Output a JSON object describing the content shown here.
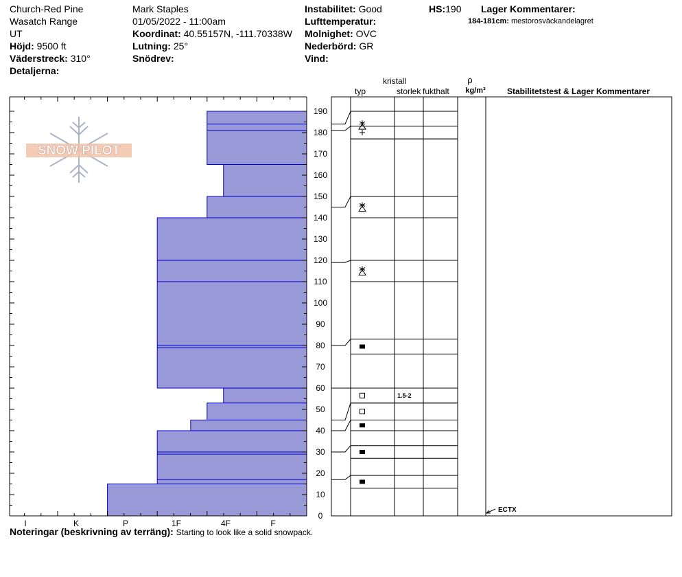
{
  "header": {
    "location": "Church-Red Pine",
    "range": "Wasatch Range",
    "state": "UT",
    "elevation_label": "Höjd:",
    "elevation": "9500 ft",
    "aspect_label": "Väderstreck:",
    "aspect": "310°",
    "details_label": "Detaljerna:",
    "observer": "Mark Staples",
    "datetime": "01/05/2022 - 11:00am",
    "coord_label": "Koordinat:",
    "coords": "40.55157N, -111.70338W",
    "slope_label": "Lutning:",
    "slope": "25°",
    "drift_label": "Snödrev:",
    "instability_label": "Instabilitet:",
    "instability": "Good",
    "airtemp_label": "Lufttemperatur:",
    "sky_label": "Molnighet:",
    "sky": "OVC",
    "precip_label": "Nederbörd:",
    "precip": "GR",
    "wind_label": "Vind:",
    "hs_label": "HS:",
    "hs": "190",
    "layer_comments_label": "Lager Kommentarer:",
    "layer_comment_range": "184-181cm:",
    "layer_comment_text": "mestorosväckandelagret"
  },
  "columns": {
    "type": "typ",
    "crystal_top": "kristall",
    "crystal_bottom": "storlek",
    "moisture": "fukthalt",
    "rho": "ρ",
    "density_unit": "kg/m³",
    "stability": "Stabilitetstest & Lager Kommentarer"
  },
  "logo": "SNOW PILOT",
  "notes_label": "Noteringar (beskrivning av terräng):",
  "notes_text": "Starting to look like a solid snowpack.",
  "chart_data": {
    "type": "snow-profile",
    "depth_range": [
      0,
      190
    ],
    "depth_ticks": [
      0,
      10,
      20,
      30,
      40,
      50,
      60,
      70,
      80,
      90,
      100,
      110,
      120,
      130,
      140,
      150,
      160,
      170,
      180,
      190
    ],
    "hardness_scale": [
      "I",
      "K",
      "P",
      "1F",
      "4F",
      "F"
    ],
    "fill_color": "#9999d8",
    "line_color": "#0000cc",
    "hardness_layers": [
      {
        "top": 190,
        "bottom": 165,
        "hardness_index": 2.0
      },
      {
        "top": 165,
        "bottom": 150,
        "hardness_index": 1.67
      },
      {
        "top": 150,
        "bottom": 140,
        "hardness_index": 2.0
      },
      {
        "top": 140,
        "bottom": 60,
        "hardness_index": 3.0
      },
      {
        "top": 60,
        "bottom": 53,
        "hardness_index": 1.67
      },
      {
        "top": 53,
        "bottom": 45,
        "hardness_index": 2.0
      },
      {
        "top": 45,
        "bottom": 40,
        "hardness_index": 2.33
      },
      {
        "top": 40,
        "bottom": 15,
        "hardness_index": 3.0
      },
      {
        "top": 15,
        "bottom": 0,
        "hardness_index": 4.0
      }
    ],
    "interior_lines": [
      184,
      181,
      120,
      110,
      80,
      79,
      30,
      29,
      17
    ],
    "grain_rows": [
      {
        "top": 190,
        "bottom": 177,
        "symbol": "snowflake-triangle-icon",
        "label": "",
        "path_depth": 184
      },
      {
        "top": 183,
        "bottom": 177,
        "symbol": "plus-icon",
        "label": "",
        "path_depth": 181
      },
      {
        "top": 150,
        "bottom": 140,
        "symbol": "snowflake-triangle-icon",
        "label": "",
        "path_depth": 145
      },
      {
        "top": 120,
        "bottom": 110,
        "symbol": "snowflake-triangle-icon",
        "label": "",
        "path_depth": 119
      },
      {
        "top": 83,
        "bottom": 76,
        "symbol": "filled-square-icon",
        "label": "",
        "path_depth": 80
      },
      {
        "top": 60,
        "bottom": 53,
        "symbol": "open-square-icon",
        "label": "1.5-2",
        "path_depth": 60
      },
      {
        "top": 53,
        "bottom": 45,
        "symbol": "open-square-icon",
        "label": "",
        "path_depth": 45
      },
      {
        "top": 45,
        "bottom": 40,
        "symbol": "filled-square-icon",
        "label": "",
        "path_depth": 40
      },
      {
        "top": 33,
        "bottom": 27,
        "symbol": "filled-square-icon",
        "label": "",
        "path_depth": 30
      },
      {
        "top": 19,
        "bottom": 13,
        "symbol": "filled-square-icon",
        "label": "",
        "path_depth": 17
      }
    ],
    "stability_tests": [
      {
        "depth": 0,
        "label": "ECTX"
      }
    ]
  }
}
